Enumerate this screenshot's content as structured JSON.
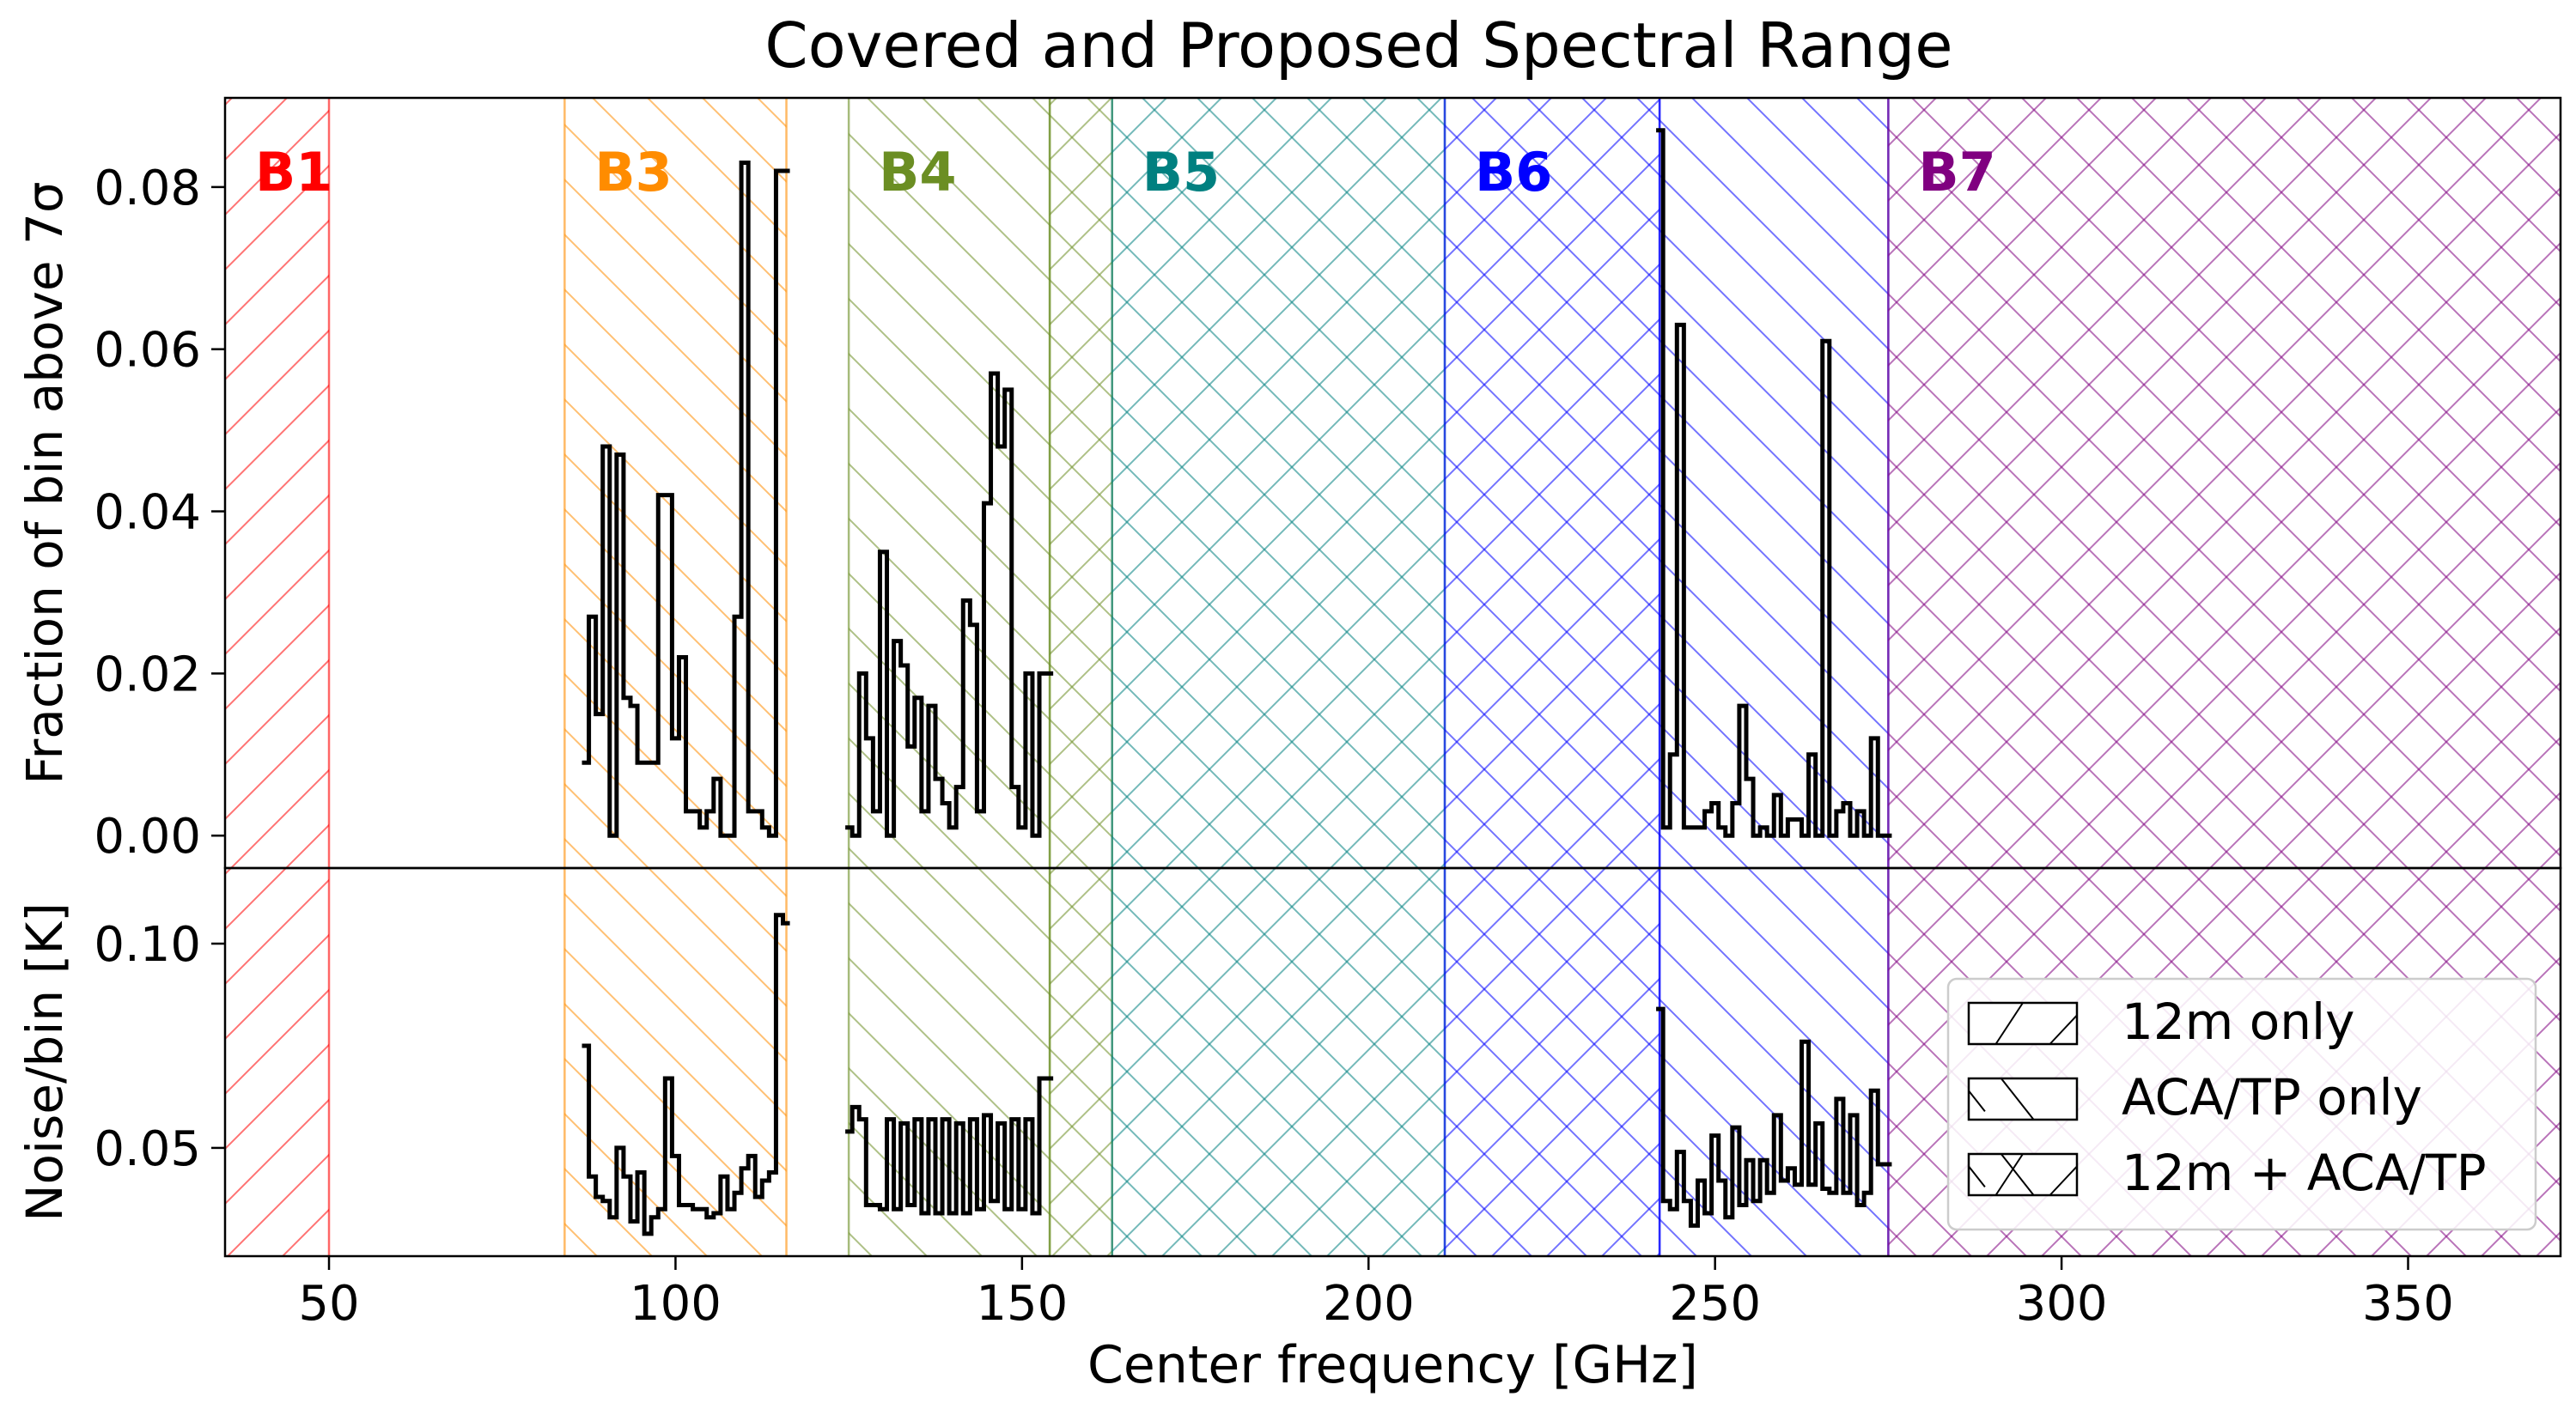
{
  "chart_data": {
    "type": "line",
    "title": "Covered and Proposed Spectral Range",
    "xlabel": "Center frequency [GHz]",
    "xlim": [
      35,
      372
    ],
    "xticks": [
      50,
      100,
      150,
      200,
      250,
      300,
      350
    ],
    "x_tick_labels": [
      "50",
      "100",
      "150",
      "200",
      "250",
      "300",
      "350"
    ],
    "bands": [
      {
        "label": "B1",
        "start": 35,
        "end": 50,
        "color": "#ff0000",
        "hatch": "12m only"
      },
      {
        "label": "B3",
        "start": 84,
        "end": 116,
        "color": "#ff8c00",
        "hatch": "ACA/TP only"
      },
      {
        "label": "B4",
        "start": 125,
        "end": 154,
        "color": "#6b8e23",
        "hatch": "ACA/TP only"
      },
      {
        "label": "",
        "start": 154,
        "end": 163,
        "color": "#6b8e23",
        "hatch": "12m + ACA/TP"
      },
      {
        "label": "B5",
        "start": 163,
        "end": 211,
        "color": "#008080",
        "hatch": "12m + ACA/TP"
      },
      {
        "label": "B6",
        "start": 211,
        "end": 242,
        "color": "#0000ff",
        "hatch": "12m + ACA/TP"
      },
      {
        "label": "",
        "start": 242,
        "end": 275,
        "color": "#0000ff",
        "hatch": "ACA/TP only"
      },
      {
        "label": "B7",
        "start": 275,
        "end": 372,
        "color": "#800080",
        "hatch": "12m + ACA/TP"
      }
    ],
    "legend": {
      "placement": "lower-right",
      "entries": [
        "12m only",
        "ACA/TP only",
        "12m + ACA/TP"
      ]
    },
    "panels": [
      {
        "ylabel": "Fraction of bin above 7σ",
        "ylim": [
          -0.004,
          0.091
        ],
        "yticks": [
          0.0,
          0.02,
          0.04,
          0.06,
          0.08
        ],
        "y_tick_labels": [
          "0.00",
          "0.02",
          "0.04",
          "0.06",
          "0.08"
        ],
        "series": [
          {
            "x": [
              87,
              88,
              89,
              90,
              91,
              92,
              93,
              94,
              95,
              96,
              97,
              98,
              99,
              100,
              101,
              102,
              103,
              104,
              105,
              106,
              107,
              108,
              109,
              110,
              111,
              112,
              113,
              114,
              115,
              116
            ],
            "y": [
              0.009,
              0.027,
              0.015,
              0.048,
              0.0,
              0.047,
              0.017,
              0.016,
              0.009,
              0.009,
              0.009,
              0.042,
              0.042,
              0.012,
              0.022,
              0.003,
              0.003,
              0.001,
              0.003,
              0.007,
              0.0,
              0.0,
              0.027,
              0.083,
              0.003,
              0.003,
              0.001,
              0.0,
              0.082,
              0.082
            ]
          },
          {
            "x": [
              125,
              126,
              127,
              128,
              129,
              130,
              131,
              132,
              133,
              134,
              135,
              136,
              137,
              138,
              139,
              140,
              141,
              142,
              143,
              144,
              145,
              146,
              147,
              148,
              149,
              150,
              151,
              152,
              153,
              154
            ],
            "y": [
              0.001,
              0.0,
              0.02,
              0.012,
              0.003,
              0.035,
              0.0,
              0.024,
              0.021,
              0.011,
              0.017,
              0.003,
              0.016,
              0.007,
              0.004,
              0.001,
              0.006,
              0.029,
              0.026,
              0.003,
              0.041,
              0.057,
              0.048,
              0.055,
              0.006,
              0.001,
              0.02,
              0.0,
              0.02,
              0.02
            ]
          },
          {
            "x": [
              242,
              243,
              244,
              245,
              246,
              247,
              248,
              249,
              250,
              251,
              252,
              253,
              254,
              255,
              256,
              257,
              258,
              259,
              260,
              261,
              262,
              263,
              264,
              265,
              266,
              267,
              268,
              269,
              270,
              271,
              272,
              273,
              274,
              275
            ],
            "y": [
              0.087,
              0.001,
              0.01,
              0.063,
              0.001,
              0.001,
              0.001,
              0.003,
              0.004,
              0.001,
              0.0,
              0.004,
              0.016,
              0.007,
              0.0,
              0.001,
              0.0,
              0.005,
              0.0,
              0.002,
              0.002,
              0.0,
              0.01,
              0.0,
              0.061,
              0.0,
              0.003,
              0.004,
              0.0,
              0.003,
              0.0,
              0.012,
              0.0,
              0.0
            ]
          }
        ]
      },
      {
        "ylabel": "Noise/bin [K]",
        "ylim": [
          0.0235,
          0.1185
        ],
        "yticks": [
          0.05,
          0.1
        ],
        "y_tick_labels": [
          "0.05",
          "0.10"
        ],
        "series": [
          {
            "x": [
              87,
              88,
              89,
              90,
              91,
              92,
              93,
              94,
              95,
              96,
              97,
              98,
              99,
              100,
              101,
              102,
              103,
              104,
              105,
              106,
              107,
              108,
              109,
              110,
              111,
              112,
              113,
              114,
              115,
              116
            ],
            "y": [
              0.075,
              0.043,
              0.038,
              0.037,
              0.033,
              0.05,
              0.043,
              0.032,
              0.044,
              0.029,
              0.033,
              0.035,
              0.067,
              0.048,
              0.036,
              0.036,
              0.035,
              0.035,
              0.033,
              0.034,
              0.043,
              0.035,
              0.039,
              0.045,
              0.048,
              0.038,
              0.042,
              0.044,
              0.107,
              0.105
            ]
          },
          {
            "x": [
              125,
              126,
              127,
              128,
              129,
              130,
              131,
              132,
              133,
              134,
              135,
              136,
              137,
              138,
              139,
              140,
              141,
              142,
              143,
              144,
              145,
              146,
              147,
              148,
              149,
              150,
              151,
              152,
              153,
              154
            ],
            "y": [
              0.054,
              0.06,
              0.057,
              0.036,
              0.036,
              0.035,
              0.057,
              0.035,
              0.056,
              0.036,
              0.057,
              0.034,
              0.057,
              0.034,
              0.057,
              0.034,
              0.056,
              0.034,
              0.057,
              0.035,
              0.058,
              0.037,
              0.056,
              0.035,
              0.057,
              0.035,
              0.057,
              0.034,
              0.067,
              0.067
            ]
          },
          {
            "x": [
              242,
              243,
              244,
              245,
              246,
              247,
              248,
              249,
              250,
              251,
              252,
              253,
              254,
              255,
              256,
              257,
              258,
              259,
              260,
              261,
              262,
              263,
              264,
              265,
              266,
              267,
              268,
              269,
              270,
              271,
              272,
              273,
              274,
              275
            ],
            "y": [
              0.084,
              0.037,
              0.035,
              0.049,
              0.037,
              0.031,
              0.042,
              0.034,
              0.053,
              0.042,
              0.033,
              0.055,
              0.036,
              0.047,
              0.037,
              0.047,
              0.039,
              0.058,
              0.042,
              0.045,
              0.041,
              0.076,
              0.041,
              0.056,
              0.04,
              0.039,
              0.062,
              0.039,
              0.058,
              0.036,
              0.039,
              0.064,
              0.046,
              0.046
            ]
          }
        ]
      }
    ]
  },
  "colors": {
    "frame": "#000000",
    "series": "#000000",
    "background": "#ffffff"
  }
}
